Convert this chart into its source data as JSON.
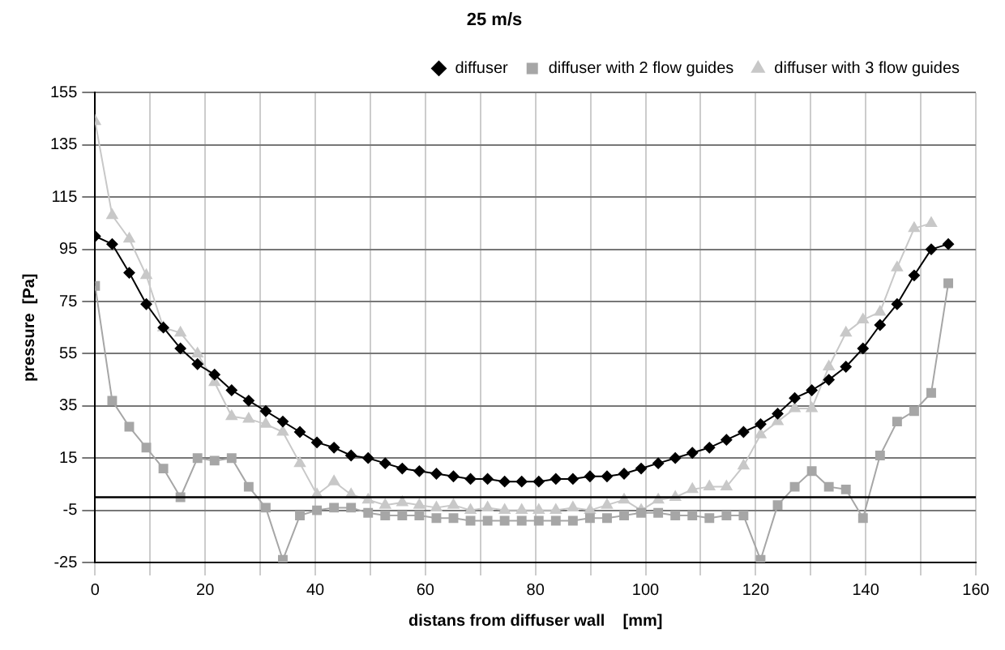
{
  "chart_data": {
    "type": "line",
    "title": "25 m/s",
    "xlabel": "distans from diffuser wall    [mm]",
    "ylabel": "pressure  [Pa]",
    "x": [
      0,
      3.1,
      6.2,
      9.3,
      12.4,
      15.5,
      18.6,
      21.7,
      24.8,
      27.9,
      31,
      34.1,
      37.2,
      40.3,
      43.4,
      46.5,
      49.6,
      52.7,
      55.8,
      58.9,
      62,
      65.1,
      68.2,
      71.3,
      74.4,
      77.5,
      80.6,
      83.7,
      86.8,
      89.9,
      93,
      96.1,
      99.2,
      102.3,
      105.4,
      108.5,
      111.6,
      114.7,
      117.8,
      120.9,
      124,
      127.1,
      130.2,
      133.3,
      136.4,
      139.5,
      142.6,
      145.7,
      148.8,
      151.9,
      155
    ],
    "series": [
      {
        "name": "diffuser",
        "color": "#000000",
        "marker": "diamond",
        "values": [
          100,
          97,
          86,
          74,
          65,
          57,
          51,
          47,
          41,
          37,
          33,
          29,
          25,
          21,
          19,
          16,
          15,
          13,
          11,
          10,
          9,
          8,
          7,
          7,
          6,
          6,
          6,
          7,
          7,
          8,
          8,
          9,
          11,
          13,
          15,
          17,
          19,
          22,
          25,
          28,
          32,
          38,
          41,
          45,
          50,
          57,
          66,
          74,
          85,
          95,
          97
        ]
      },
      {
        "name": "diffuser with 2 flow guides",
        "color": "#a6a6a6",
        "marker": "square",
        "values": [
          81,
          37,
          27,
          19,
          11,
          0,
          15,
          14,
          15,
          4,
          -4,
          -24,
          -7,
          -5,
          -4,
          -4,
          -6,
          -7,
          -7,
          -7,
          -8,
          -8,
          -9,
          -9,
          -9,
          -9,
          -9,
          -9,
          -9,
          -8,
          -8,
          -7,
          -6,
          -6,
          -7,
          -7,
          -8,
          -7,
          -7,
          -24,
          -3,
          4,
          10,
          4,
          3,
          -8,
          16,
          29,
          33,
          40,
          82
        ]
      },
      {
        "name": "diffuser with 3 flow guides",
        "color": "#c8c8c8",
        "marker": "triangle",
        "values": [
          144,
          108,
          99,
          85,
          65,
          63,
          55,
          44,
          31,
          30,
          28,
          25,
          13,
          1,
          6,
          1,
          -1,
          -3,
          -2,
          -3,
          -4,
          -3,
          -5,
          -4,
          -5,
          -5,
          -5,
          -5,
          -4,
          -5,
          -3,
          -1,
          -5,
          -1,
          0,
          3,
          4,
          4,
          12,
          24,
          29,
          34,
          34,
          50,
          63,
          68,
          71,
          88,
          103,
          105,
          null
        ]
      }
    ],
    "xlim": [
      0,
      160
    ],
    "xticks": [
      0,
      {
        "value": 10,
        "label": null
      },
      20,
      {
        "value": 30,
        "label": null
      },
      40,
      {
        "value": 50,
        "label": null
      },
      60,
      {
        "value": 70,
        "label": null
      },
      80,
      {
        "value": 90,
        "label": null
      },
      100,
      {
        "value": 110,
        "label": null
      },
      120,
      {
        "value": 130,
        "label": null
      },
      140,
      {
        "value": 150,
        "label": null
      },
      160
    ],
    "ylim": [
      -25,
      155
    ],
    "yticks": [
      -25,
      -5,
      15,
      35,
      55,
      75,
      95,
      115,
      135,
      155
    ],
    "ref_lines": [
      {
        "axis": "y",
        "value": 0,
        "color": "#000000"
      }
    ],
    "grid": true,
    "legend": "top right",
    "line_style": "solid"
  }
}
